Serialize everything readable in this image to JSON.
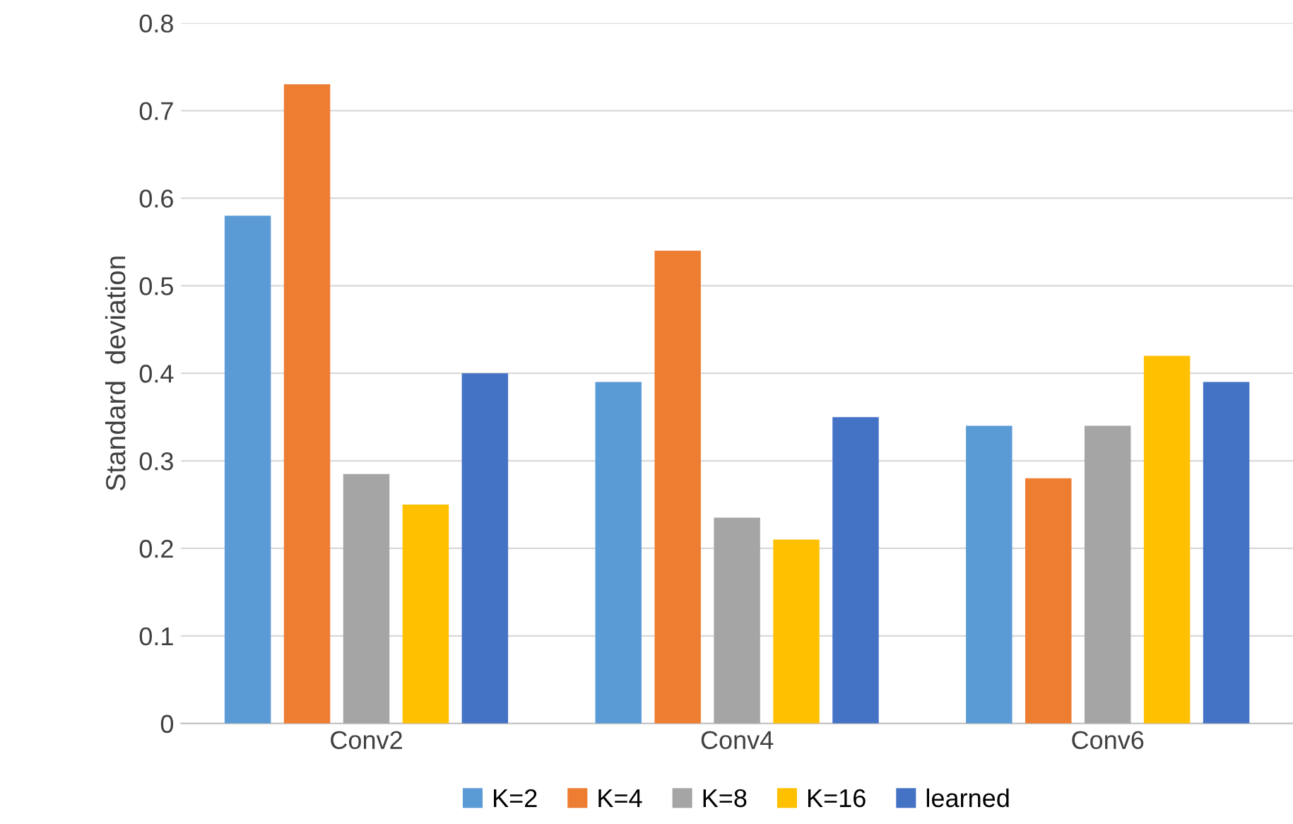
{
  "chart_data": {
    "type": "bar",
    "ylabel": "Standard  deviation",
    "categories": [
      "Conv2",
      "Conv4",
      "Conv6"
    ],
    "series": [
      {
        "name": "K=2",
        "color": "#5b9bd5",
        "values": [
          0.58,
          0.39,
          0.34
        ]
      },
      {
        "name": "K=4",
        "color": "#ed7d31",
        "values": [
          0.73,
          0.54,
          0.28
        ]
      },
      {
        "name": "K=8",
        "color": "#a5a5a5",
        "values": [
          0.285,
          0.235,
          0.34
        ]
      },
      {
        "name": "K=16",
        "color": "#ffc000",
        "values": [
          0.25,
          0.21,
          0.42
        ]
      },
      {
        "name": "learned",
        "color": "#4472c4",
        "values": [
          0.4,
          0.35,
          0.39
        ]
      }
    ],
    "ylim": [
      0,
      0.8
    ],
    "yticks": [
      {
        "value": 0,
        "label": "0"
      },
      0.1,
      0.2,
      0.3,
      0.4,
      0.5,
      0.6,
      0.7,
      0.8
    ],
    "grid": "y",
    "legend": "bottom"
  }
}
